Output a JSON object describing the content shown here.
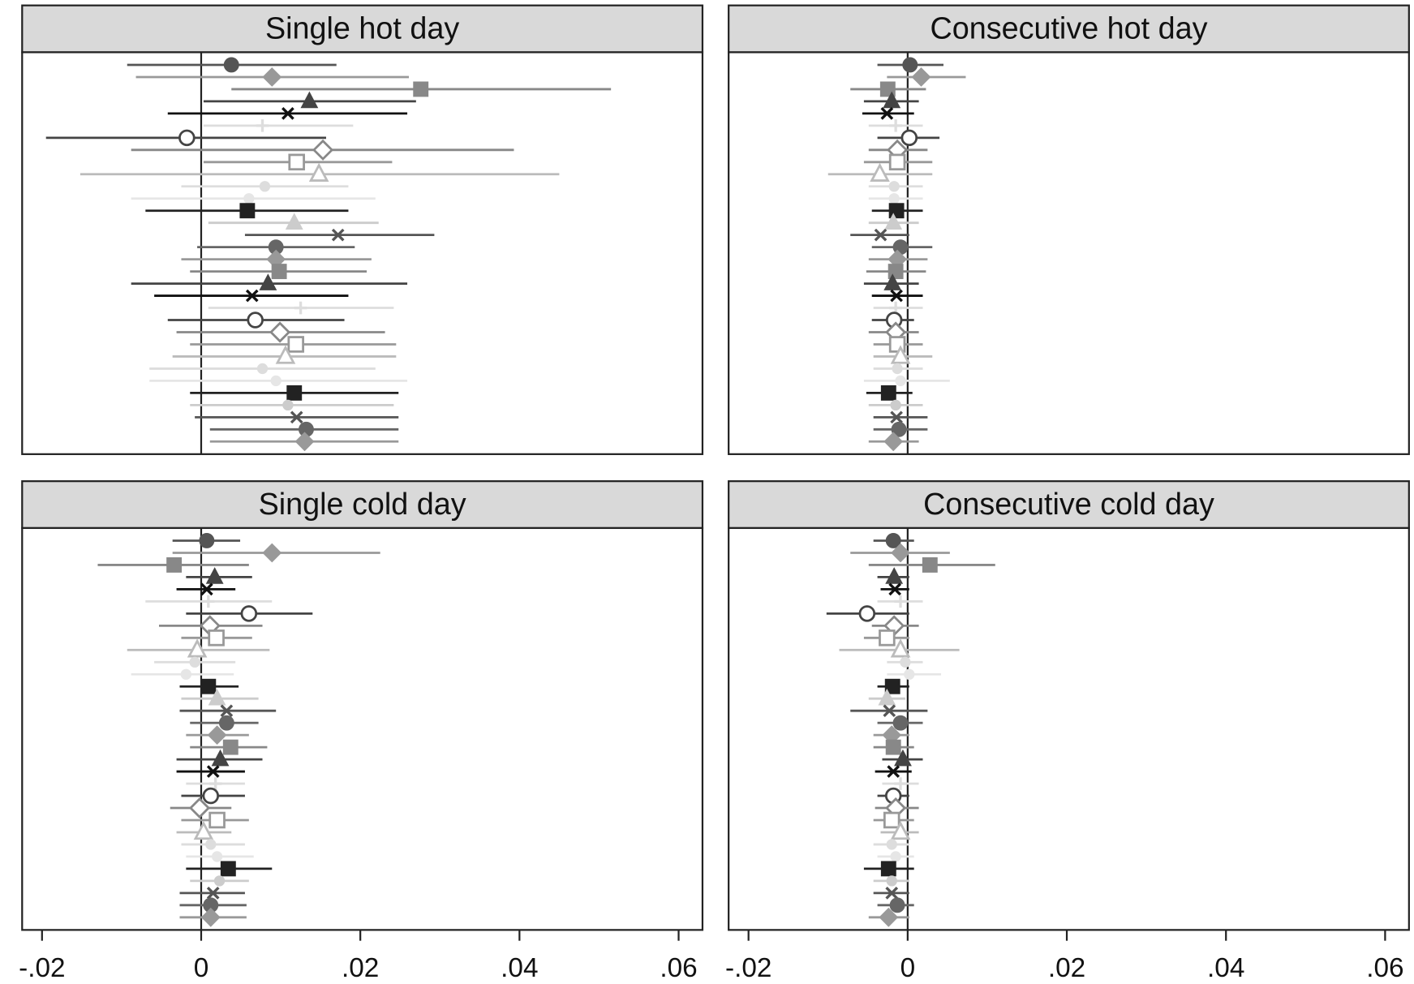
{
  "row_styles": {
    "markers": [
      "circle",
      "diamond",
      "square",
      "triangle",
      "x",
      "plus",
      "circle-open",
      "diamond-open",
      "square-open",
      "triangle-open",
      "dot",
      "dot",
      "square",
      "triangle",
      "x",
      "circle",
      "diamond",
      "square",
      "triangle",
      "x",
      "plus",
      "circle-open",
      "diamond-open",
      "square-open",
      "triangle-open",
      "dot",
      "dot",
      "square",
      "dot",
      "x",
      "circle",
      "diamond"
    ],
    "colors": [
      "#555555",
      "#999999",
      "#888888",
      "#444444",
      "#111111",
      "#dddddd",
      "#444444",
      "#888888",
      "#999999",
      "#bbbbbb",
      "#dddddd",
      "#e6e6e6",
      "#222222",
      "#cccccc",
      "#555555",
      "#666666",
      "#999999",
      "#888888",
      "#444444",
      "#111111",
      "#dddddd",
      "#444444",
      "#888888",
      "#999999",
      "#bbbbbb",
      "#dddddd",
      "#e6e6e6",
      "#222222",
      "#cccccc",
      "#555555",
      "#666666",
      "#999999"
    ]
  },
  "chart_data": [
    {
      "type": "errorbar",
      "title": "Single hot day",
      "xlim": [
        -0.0225,
        0.063
      ],
      "reference_line": 0,
      "estimates": [
        0.0038,
        0.0089,
        0.0276,
        0.0136,
        0.0109,
        0.0077,
        -0.0018,
        0.0153,
        0.012,
        0.0148,
        0.008,
        0.006,
        0.0058,
        0.0117,
        0.0172,
        0.0094,
        0.0094,
        0.0098,
        0.0084,
        0.0064,
        0.0125,
        0.0068,
        0.0099,
        0.0119,
        0.0106,
        0.0077,
        0.0094,
        0.0117,
        0.0109,
        0.012,
        0.0132,
        0.013
      ],
      "lower": [
        -0.0093,
        -0.0082,
        0.0038,
        0.0003,
        -0.0042,
        0.0003,
        -0.0195,
        -0.0088,
        0.0003,
        -0.0152,
        -0.0025,
        -0.0088,
        -0.007,
        0.0009,
        0.0055,
        -0.0005,
        -0.0025,
        -0.0014,
        -0.0088,
        -0.0059,
        0.0009,
        -0.0042,
        -0.0031,
        -0.0014,
        -0.0036,
        -0.0065,
        -0.0065,
        -0.0014,
        -0.0014,
        -0.0008,
        0.0011,
        0.0011
      ],
      "upper": [
        0.017,
        0.0261,
        0.0515,
        0.027,
        0.0259,
        0.0191,
        0.0157,
        0.0393,
        0.024,
        0.045,
        0.0185,
        0.0219,
        0.0185,
        0.0223,
        0.0293,
        0.0193,
        0.0214,
        0.0208,
        0.0259,
        0.0185,
        0.0242,
        0.018,
        0.0231,
        0.0245,
        0.0245,
        0.0219,
        0.0259,
        0.0248,
        0.0242,
        0.0248,
        0.0248,
        0.0248
      ]
    },
    {
      "type": "errorbar",
      "title": "Consecutive hot day",
      "xlim": [
        -0.0225,
        0.063
      ],
      "reference_line": 0,
      "estimates": [
        0.0003,
        0.0017,
        -0.0025,
        -0.002,
        -0.0026,
        -0.0015,
        0.0002,
        -0.0013,
        -0.0013,
        -0.0035,
        -0.0017,
        -0.0017,
        -0.0014,
        -0.0018,
        -0.0034,
        -0.0009,
        -0.0013,
        -0.0015,
        -0.0019,
        -0.0014,
        -0.0015,
        -0.0017,
        -0.0015,
        -0.0013,
        -0.0009,
        -0.0013,
        -0.0009,
        -0.0024,
        -0.0015,
        -0.0014,
        -0.0011,
        -0.0018
      ],
      "lower": [
        -0.0038,
        -0.0026,
        -0.0072,
        -0.0055,
        -0.0057,
        -0.0049,
        -0.0038,
        -0.0049,
        -0.0055,
        -0.01,
        -0.0049,
        -0.0049,
        -0.0045,
        -0.0049,
        -0.0072,
        -0.0045,
        -0.0049,
        -0.0052,
        -0.0055,
        -0.0045,
        -0.0043,
        -0.0045,
        -0.0049,
        -0.0043,
        -0.0043,
        -0.0043,
        -0.0055,
        -0.0052,
        -0.0049,
        -0.0043,
        -0.0043,
        -0.0049
      ],
      "upper": [
        0.0045,
        0.0073,
        0.0023,
        0.0014,
        0.0008,
        0.0019,
        0.004,
        0.0025,
        0.0031,
        0.0031,
        0.0019,
        0.0019,
        0.0019,
        0.0014,
        0.0002,
        0.0031,
        0.0025,
        0.0023,
        0.0014,
        0.0019,
        0.0019,
        0.0008,
        0.0014,
        0.0019,
        0.0031,
        0.0019,
        0.0053,
        0.0006,
        0.0019,
        0.0025,
        0.0025,
        0.0014
      ]
    },
    {
      "type": "errorbar",
      "title": "Single cold day",
      "xlim": [
        -0.0225,
        0.063
      ],
      "reference_line": 0,
      "xticks": [
        {
          "value": -0.02,
          "label": "-.02"
        },
        0,
        {
          "value": 0.02,
          "label": ".02"
        },
        {
          "value": 0.04,
          "label": ".04"
        },
        {
          "value": 0.06,
          "label": ".06"
        }
      ],
      "estimates": [
        0.0007,
        0.0089,
        -0.0034,
        0.0017,
        0.0007,
        0.0009,
        0.006,
        0.0011,
        0.0019,
        -0.0005,
        -0.0008,
        -0.0019,
        0.0009,
        0.002,
        0.0032,
        0.0032,
        0.002,
        0.0037,
        0.0024,
        0.0015,
        0.0018,
        0.0012,
        -0.0002,
        0.002,
        0.0003,
        0.0012,
        0.002,
        0.0034,
        0.0023,
        0.0015,
        0.0012,
        0.0012
      ],
      "lower": [
        -0.0036,
        -0.0036,
        -0.013,
        -0.0019,
        -0.0031,
        -0.007,
        -0.0019,
        -0.0053,
        -0.0025,
        -0.0093,
        -0.0059,
        -0.0088,
        -0.0027,
        -0.0025,
        -0.0027,
        -0.0014,
        -0.0019,
        -0.0014,
        -0.0031,
        -0.0031,
        -0.0019,
        -0.0025,
        -0.0039,
        -0.0025,
        -0.0031,
        -0.0025,
        -0.0019,
        -0.0019,
        -0.0014,
        -0.0027,
        -0.0027,
        -0.0027
      ],
      "upper": [
        0.0049,
        0.0225,
        0.006,
        0.0064,
        0.0043,
        0.0089,
        0.014,
        0.0077,
        0.0064,
        0.0086,
        0.0043,
        0.0041,
        0.0047,
        0.0072,
        0.0094,
        0.0072,
        0.006,
        0.0083,
        0.0077,
        0.0055,
        0.0055,
        0.0055,
        0.0038,
        0.006,
        0.0038,
        0.0055,
        0.0066,
        0.0089,
        0.006,
        0.0055,
        0.0057,
        0.0057
      ]
    },
    {
      "type": "errorbar",
      "title": "Consecutive cold day",
      "xlim": [
        -0.0225,
        0.063
      ],
      "reference_line": 0,
      "xticks": [
        {
          "value": -0.02,
          "label": "-.02"
        },
        0,
        {
          "value": 0.02,
          "label": ".02"
        },
        {
          "value": 0.04,
          "label": ".04"
        },
        {
          "value": 0.06,
          "label": ".06"
        }
      ],
      "estimates": [
        -0.0018,
        -0.0009,
        0.0028,
        -0.0017,
        -0.0016,
        -0.0009,
        -0.0051,
        -0.0017,
        -0.0026,
        -0.0009,
        -0.0003,
        0.0002,
        -0.0019,
        -0.0026,
        -0.0023,
        -0.0009,
        -0.002,
        -0.0018,
        -0.0006,
        -0.0018,
        -0.0009,
        -0.0018,
        -0.0015,
        -0.002,
        -0.0009,
        -0.002,
        -0.0015,
        -0.0024,
        -0.002,
        -0.002,
        -0.0013,
        -0.0024
      ],
      "lower": [
        -0.0043,
        -0.0072,
        -0.0049,
        -0.0038,
        -0.0034,
        -0.0038,
        -0.0102,
        -0.0045,
        -0.0055,
        -0.0086,
        -0.0026,
        -0.0026,
        -0.0038,
        -0.0049,
        -0.0072,
        -0.0038,
        -0.0043,
        -0.0043,
        -0.0032,
        -0.0041,
        -0.0032,
        -0.0038,
        -0.0041,
        -0.0043,
        -0.0034,
        -0.0043,
        -0.0038,
        -0.0055,
        -0.0043,
        -0.0043,
        -0.0038,
        -0.0049
      ],
      "upper": [
        0.0008,
        0.0053,
        0.011,
        0.0002,
        0.0002,
        0.0019,
        0.0002,
        0.0014,
        0.0002,
        0.0065,
        0.0019,
        0.0042,
        0.0002,
        -0.0003,
        0.0025,
        0.0019,
        0.0002,
        0.0008,
        0.0019,
        0.0005,
        0.0014,
        0.0002,
        0.0014,
        0.0008,
        0.0014,
        0.0002,
        0.0008,
        0.0008,
        0.0002,
        0.0002,
        0.0008,
        0.0002
      ]
    }
  ]
}
